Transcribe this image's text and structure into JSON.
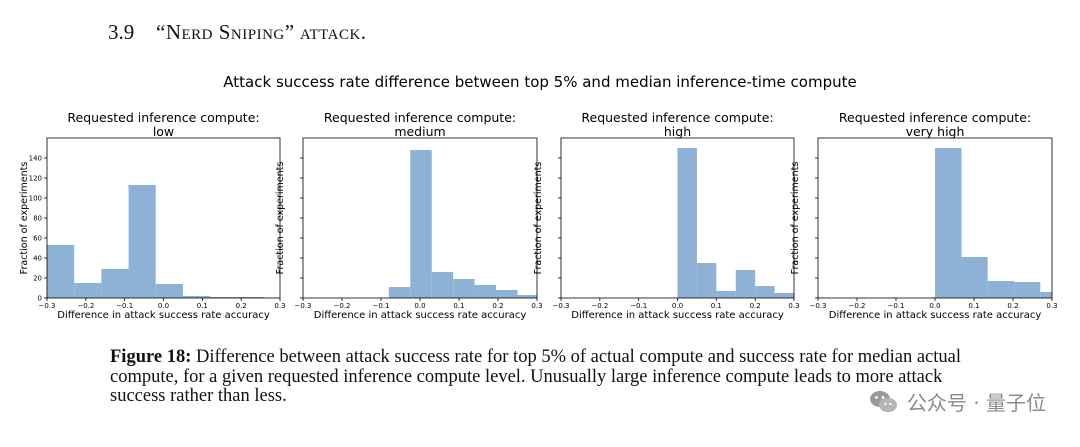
{
  "section": {
    "number": "3.9",
    "title_quoted": "“Nerd Sniping”",
    "title_rest": "attack."
  },
  "figure": {
    "suptitle": "Attack success rate difference between top 5% and median inference-time compute",
    "caption_label": "Figure 18:",
    "caption_text": "Difference between attack success rate for top 5% of actual compute and success rate for median actual compute, for a given requested inference compute level. Unusually large inference compute leads to more attack success rather than less."
  },
  "watermark": {
    "text": "公众号 · 量子位",
    "icon": "wechat-icon"
  },
  "chart_data": [
    {
      "type": "bar",
      "histogram": true,
      "title_line1": "Requested inference compute:",
      "title_line2": "low",
      "xlabel": "Difference in attack success rate accuracy",
      "ylabel": "Fraction of experiments",
      "xlim": [
        -0.3,
        0.3
      ],
      "ylim": [
        0,
        160
      ],
      "xticks": [
        -0.3,
        -0.2,
        -0.1,
        0.0,
        0.1,
        0.2,
        0.3
      ],
      "xtick_labels": [
        "−0.3",
        "−0.2",
        "−0.1",
        "0.0",
        "0.1",
        "0.2",
        "0.3"
      ],
      "yticks": [
        0,
        20,
        40,
        60,
        80,
        100,
        120,
        140
      ],
      "ytick_labels": [
        "0",
        "20",
        "40",
        "60",
        "80",
        "100",
        "120",
        "140"
      ],
      "bin_edges": [
        -0.3,
        -0.23,
        -0.16,
        -0.09,
        -0.02,
        0.05,
        0.12,
        0.19,
        0.26
      ],
      "values": [
        53,
        15,
        29,
        113,
        14,
        2,
        1,
        1
      ],
      "color": "#8db2d5"
    },
    {
      "type": "bar",
      "histogram": true,
      "title_line1": "Requested inference compute:",
      "title_line2": "medium",
      "xlabel": "Difference in attack success rate accuracy",
      "ylabel": "Fraction of experiments",
      "xlim": [
        -0.3,
        0.3
      ],
      "ylim": [
        0,
        160
      ],
      "xticks": [
        -0.3,
        -0.2,
        -0.1,
        0.0,
        0.1,
        0.2,
        0.3
      ],
      "xtick_labels": [
        "−0.3",
        "−0.2",
        "−0.1",
        "0.0",
        "0.1",
        "0.2",
        "0.3"
      ],
      "yticks": [],
      "ytick_labels": [],
      "bin_edges": [
        -0.08,
        -0.025,
        0.03,
        0.085,
        0.14,
        0.195,
        0.25,
        0.3
      ],
      "values": [
        11,
        148,
        26,
        19,
        13,
        8,
        3
      ],
      "color": "#8db2d5"
    },
    {
      "type": "bar",
      "histogram": true,
      "title_line1": "Requested inference compute:",
      "title_line2": "high",
      "xlabel": "Difference in attack success rate accuracy",
      "ylabel": "Fraction of experiments",
      "xlim": [
        -0.3,
        0.3
      ],
      "ylim": [
        0,
        160
      ],
      "xticks": [
        -0.3,
        -0.2,
        -0.1,
        0.0,
        0.1,
        0.2,
        0.3
      ],
      "xtick_labels": [
        "−0.3",
        "−0.2",
        "−0.1",
        "0.0",
        "0.1",
        "0.2",
        "0.3"
      ],
      "yticks": [],
      "ytick_labels": [],
      "bin_edges": [
        0.0,
        0.05,
        0.1,
        0.15,
        0.2,
        0.25,
        0.3
      ],
      "values": [
        150,
        35,
        7,
        28,
        12,
        5
      ],
      "color": "#8db2d5"
    },
    {
      "type": "bar",
      "histogram": true,
      "title_line1": "Requested inference compute:",
      "title_line2": "very high",
      "xlabel": "Difference in attack success rate accuracy",
      "ylabel": "Fraction of experiments",
      "xlim": [
        -0.3,
        0.3
      ],
      "ylim": [
        0,
        160
      ],
      "xticks": [
        -0.3,
        -0.2,
        -0.1,
        0.0,
        0.1,
        0.2,
        0.3
      ],
      "xtick_labels": [
        "−0.3",
        "−0.2",
        "−0.1",
        "0.0",
        "0.1",
        "0.2",
        "0.3"
      ],
      "yticks": [],
      "ytick_labels": [],
      "bin_edges": [
        0.0,
        0.068,
        0.135,
        0.203,
        0.27,
        0.3
      ],
      "values": [
        150,
        41,
        17,
        16,
        6
      ],
      "color": "#8db2d5"
    }
  ]
}
